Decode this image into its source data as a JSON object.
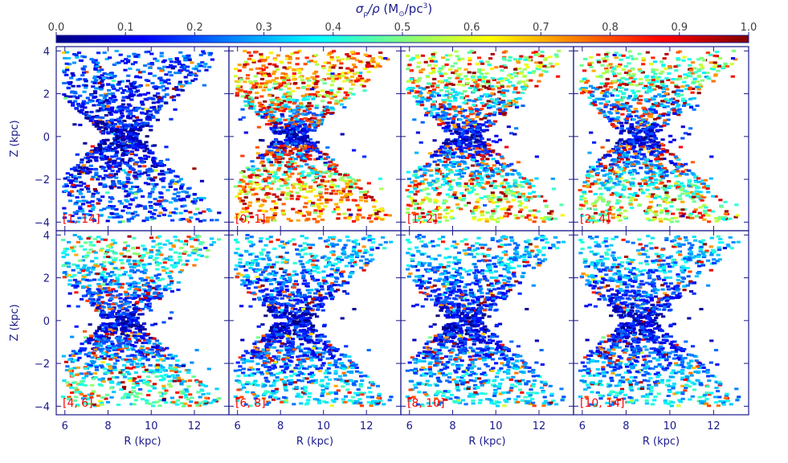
{
  "colorbar": {
    "title": "σρ/ρ (M⊙/pc³)",
    "title_parts": {
      "sigma": "σ",
      "sigma_sub": "ρ",
      "slash": "/ρ",
      "unit_open": " (M",
      "sun": "⊙",
      "unit_mid": "/pc",
      "unit_exp": "3",
      "unit_close": ")"
    },
    "ticks": [
      "0.0",
      "0.1",
      "0.2",
      "0.3",
      "0.4",
      "0.5",
      "0.6",
      "0.7",
      "0.8",
      "0.9",
      "1.0"
    ],
    "range": [
      0,
      1
    ],
    "colormap": [
      "#00007f",
      "#0000ff",
      "#007fff",
      "#00ffff",
      "#7fff7f",
      "#ffff00",
      "#ff7f00",
      "#ff0000",
      "#7f0000"
    ]
  },
  "axes": {
    "xlabel": "R (kpc)",
    "ylabel": "Z (kpc)",
    "xlim": [
      5.6,
      13.6
    ],
    "ylim": [
      -4.4,
      4.2
    ],
    "xticks": [
      "6",
      "8",
      "10",
      "12"
    ],
    "yticks": [
      "4",
      "2",
      "0",
      "−2",
      "−4"
    ],
    "frame_color": "#1a1a8c",
    "label_color": "#ff0000"
  },
  "chart_data": [
    {
      "type": "scatter",
      "panel_label": "[1, 14]",
      "noise_level": 0.15,
      "hot_fraction": 0.03
    },
    {
      "type": "scatter",
      "panel_label": "[0, 1]",
      "noise_level": 0.75,
      "hot_fraction": 0.45
    },
    {
      "type": "scatter",
      "panel_label": "[1, 2]",
      "noise_level": 0.55,
      "hot_fraction": 0.3
    },
    {
      "type": "scatter",
      "panel_label": "[2, 4]",
      "noise_level": 0.5,
      "hot_fraction": 0.28
    },
    {
      "type": "scatter",
      "panel_label": "[4, 6]",
      "noise_level": 0.4,
      "hot_fraction": 0.18
    },
    {
      "type": "scatter",
      "panel_label": "[6, 8]",
      "noise_level": 0.3,
      "hot_fraction": 0.1
    },
    {
      "type": "scatter",
      "panel_label": "[8, 10]",
      "noise_level": 0.3,
      "hot_fraction": 0.1
    },
    {
      "type": "scatter",
      "panel_label": "[10, 14]",
      "noise_level": 0.3,
      "hot_fraction": 0.1
    }
  ]
}
